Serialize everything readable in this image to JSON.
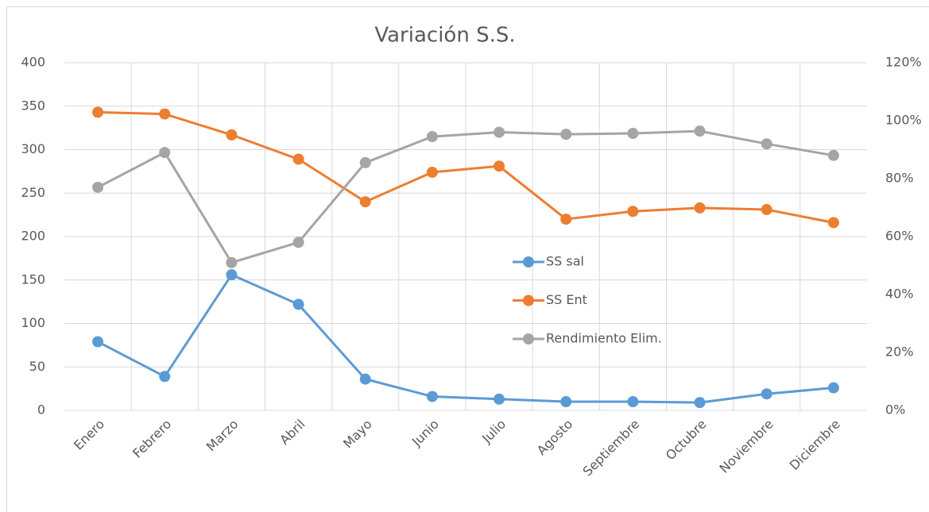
{
  "chart_data": {
    "type": "line",
    "title": "Variación S.S.",
    "categories": [
      "Enero",
      "Febrero",
      "Marzo",
      "Abril",
      "Mayo",
      "Junio",
      "Julio",
      "Agosto",
      "Septiembre",
      "Octubre",
      "Noviembre",
      "Diciembre"
    ],
    "series": [
      {
        "name": "SS sal",
        "color": "#5b9bd5",
        "values": [
          79,
          39,
          156,
          122,
          36,
          16,
          13,
          10,
          10,
          9,
          19,
          26
        ]
      },
      {
        "name": "SS Ent",
        "color": "#ed7d31",
        "values": [
          343,
          341,
          317,
          289,
          240,
          274,
          281,
          220,
          229,
          233,
          231,
          216
        ]
      },
      {
        "name": "Rendimiento Elim.",
        "color": "#a5a5a5",
        "axis": "y2",
        "values": [
          77,
          89,
          51,
          58,
          85.5,
          94.5,
          96,
          95.3,
          95.6,
          96.4,
          92,
          88
        ]
      }
    ],
    "ylim": [
      0,
      400
    ],
    "yticks": [
      0,
      50,
      100,
      150,
      200,
      250,
      300,
      350,
      400
    ],
    "y2lim": [
      0,
      120
    ],
    "y2ticks": [
      {
        "value": 0,
        "label": "0%"
      },
      {
        "value": 20,
        "label": "20%"
      },
      {
        "value": 40,
        "label": "40%"
      },
      {
        "value": 60,
        "label": "60%"
      },
      {
        "value": 80,
        "label": "80%"
      },
      {
        "value": 100,
        "label": "100%"
      },
      {
        "value": 120,
        "label": "120%"
      }
    ],
    "grid": true,
    "legend": "center"
  }
}
